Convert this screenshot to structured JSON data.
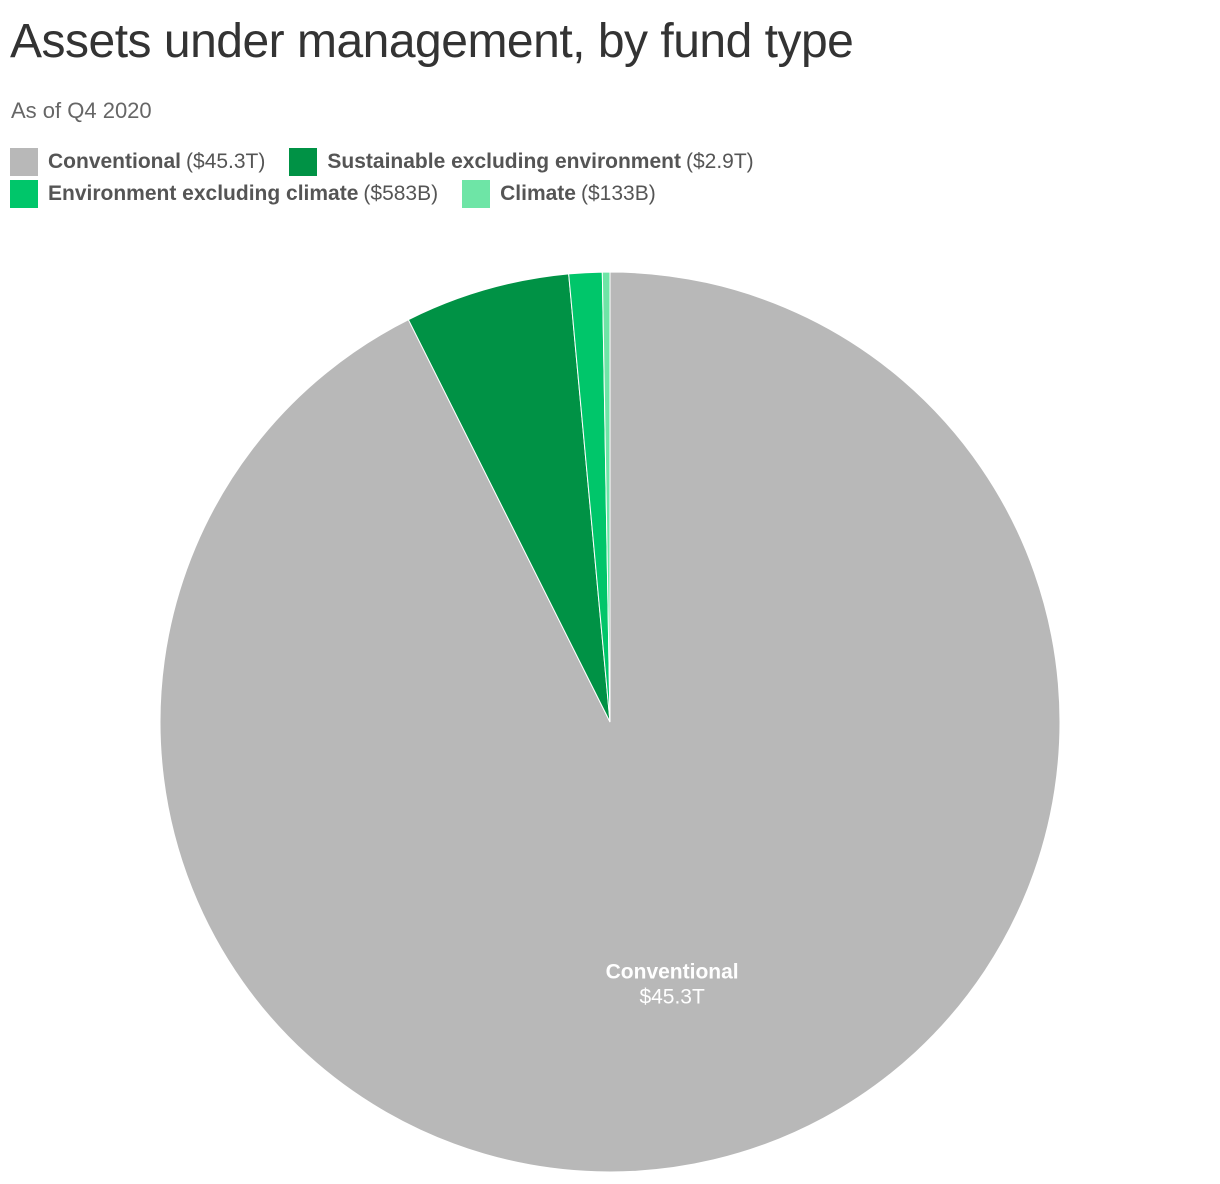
{
  "chart_data": {
    "type": "pie",
    "title": "Assets under management, by fund type",
    "subtitle": "As of Q4 2020",
    "unit": "billions of dollars",
    "categories": [
      "Conventional",
      "Sustainable excluding environment",
      "Environment excluding climate",
      "Climate"
    ],
    "values": [
      45300,
      2900,
      583,
      133
    ],
    "value_labels": [
      "$45.3T",
      null,
      null,
      null
    ],
    "legend_value_labels": [
      "($45.3T)",
      "($2.9T)",
      "($583B)",
      "($133B)"
    ],
    "colors": [
      "#b8b8b8",
      "#009245",
      "#00c66a",
      "#6ee5a6"
    ]
  }
}
